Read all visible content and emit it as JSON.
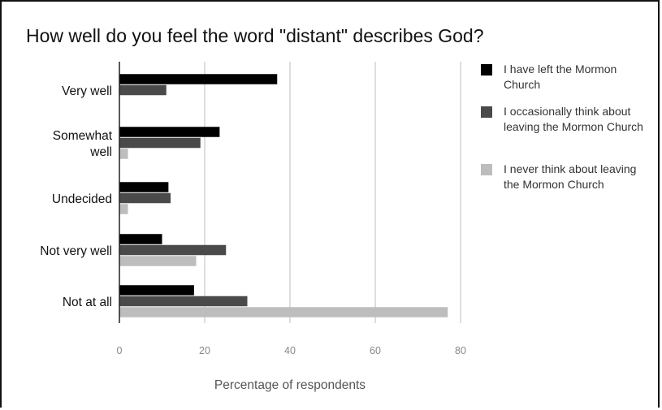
{
  "title": "How well do you feel the word \"distant\" describes God?",
  "chart_data": {
    "type": "bar",
    "orientation": "horizontal",
    "title": "How well do you feel the word \"distant\" describes God?",
    "xlabel": "Percentage of respondents",
    "ylabel": "",
    "xlim": [
      0,
      80
    ],
    "xticks": [
      0,
      20,
      40,
      60,
      80
    ],
    "grid": true,
    "legend_position": "right",
    "categories": [
      "Very well",
      "Somewhat well",
      "Undecided",
      "Not very well",
      "Not at all"
    ],
    "series": [
      {
        "name": "I have left the Mormon Church",
        "color": "#000000",
        "values": [
          37,
          23.5,
          11.5,
          10,
          17.5
        ]
      },
      {
        "name": "I occasionally think about leaving the Mormon Church",
        "color": "#4a4a4a",
        "values": [
          11,
          19,
          12,
          25,
          30
        ]
      },
      {
        "name": "I never think about leaving the Mormon Church",
        "color": "#bdbdbd",
        "values": [
          0,
          2,
          2,
          18,
          77
        ]
      }
    ]
  }
}
